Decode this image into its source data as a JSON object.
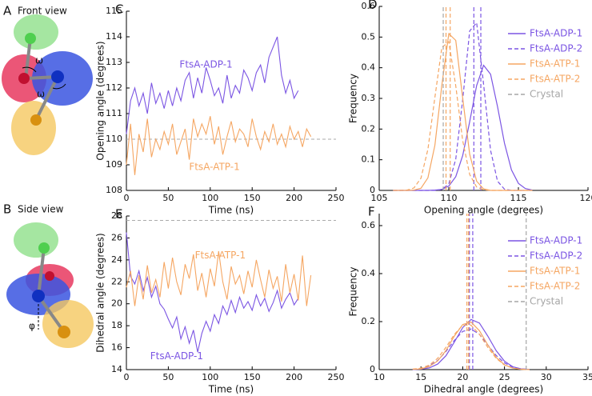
{
  "panels": {
    "A": {
      "letter": "A",
      "title": "Front view",
      "angle_labels": [
        "ω",
        "ω"
      ]
    },
    "B": {
      "letter": "B",
      "title": "Side view",
      "angle_label": "φ"
    }
  },
  "chart_data": [
    {
      "type": "line",
      "panel": "C",
      "xlabel": "Time (ns)",
      "ylabel": "Opening angle (degrees)",
      "xlim": [
        0,
        250
      ],
      "xticks": [
        0,
        50,
        100,
        150,
        200,
        250
      ],
      "ylim": [
        108,
        115
      ],
      "yticks": [
        108,
        109,
        110,
        111,
        112,
        113,
        114,
        115
      ],
      "reference_line": 110,
      "x": [
        0,
        5,
        10,
        15,
        20,
        25,
        30,
        35,
        40,
        45,
        50,
        55,
        60,
        65,
        70,
        75,
        80,
        85,
        90,
        95,
        100,
        105,
        110,
        115,
        120,
        125,
        130,
        135,
        140,
        145,
        150,
        155,
        160,
        165,
        170,
        175,
        180,
        185,
        190,
        195,
        200,
        205,
        210,
        215,
        220
      ],
      "series": [
        {
          "name": "FtsA-ADP-1",
          "color": "#7b55e3",
          "values": [
            110.2,
            111.5,
            112.0,
            111.3,
            111.8,
            111.0,
            112.2,
            111.4,
            111.8,
            111.2,
            111.9,
            111.3,
            112.0,
            111.5,
            112.3,
            112.6,
            111.6,
            112.4,
            111.8,
            112.8,
            112.3,
            111.7,
            112.0,
            111.4,
            112.5,
            111.6,
            112.1,
            111.8,
            112.7,
            112.4,
            111.9,
            112.6,
            112.9,
            112.2,
            113.2,
            113.6,
            114.0,
            112.5,
            111.8,
            112.3,
            111.6,
            111.9,
            null,
            null,
            null
          ]
        },
        {
          "name": "FtsA-ATP-1",
          "color": "#f5a662",
          "values": [
            109.0,
            110.6,
            108.6,
            110.2,
            109.5,
            110.8,
            109.3,
            110.0,
            109.6,
            110.3,
            109.8,
            110.6,
            109.4,
            109.9,
            110.4,
            109.2,
            110.8,
            110.1,
            110.6,
            110.2,
            110.9,
            109.8,
            110.5,
            109.4,
            110.1,
            110.7,
            109.9,
            110.4,
            110.2,
            109.7,
            110.8,
            110.1,
            109.6,
            110.3,
            109.9,
            110.6,
            109.8,
            110.2,
            109.7,
            110.5,
            110.0,
            110.3,
            109.7,
            110.4,
            110.1
          ]
        }
      ]
    },
    {
      "type": "distribution",
      "panel": "D",
      "xlabel": "Opening angle (degrees)",
      "ylabel": "Frequency",
      "xlim": [
        105,
        120
      ],
      "xticks": [
        105,
        110,
        115,
        120
      ],
      "ylim": [
        0,
        0.6
      ],
      "yticks": [
        0,
        0.1,
        0.2,
        0.3,
        0.4,
        0.5,
        0.6
      ],
      "x": [
        106,
        106.5,
        107,
        107.5,
        108,
        108.5,
        109,
        109.5,
        110,
        110.5,
        111,
        111.5,
        112,
        112.5,
        113,
        113.5,
        114,
        114.5,
        115,
        115.5,
        116
      ],
      "series": [
        {
          "name": "FtsA-ADP-1",
          "color": "#7b55e3",
          "dash": false,
          "mean": 112.3,
          "values": [
            0,
            0,
            0,
            0,
            0,
            0,
            0.001,
            0.003,
            0.014,
            0.045,
            0.114,
            0.224,
            0.342,
            0.408,
            0.379,
            0.273,
            0.154,
            0.067,
            0.023,
            0.006,
            0.001
          ]
        },
        {
          "name": "FtsA-ADP-2",
          "color": "#7b55e3",
          "dash": true,
          "mean": 111.8,
          "values": [
            0,
            0,
            0,
            0,
            0,
            0,
            0,
            0.003,
            0.021,
            0.102,
            0.297,
            0.52,
            0.547,
            0.346,
            0.131,
            0.03,
            0.004,
            0,
            0,
            0,
            0
          ]
        },
        {
          "name": "FtsA-ATP-1",
          "color": "#f5a662",
          "dash": false,
          "mean": 110.1,
          "values": [
            0,
            0,
            0,
            0.001,
            0.007,
            0.041,
            0.147,
            0.343,
            0.511,
            0.489,
            0.3,
            0.118,
            0.03,
            0.005,
            0,
            0,
            0,
            0,
            0,
            0,
            0
          ]
        },
        {
          "name": "FtsA-ATP-2",
          "color": "#f5a662",
          "dash": true,
          "mean": 109.8,
          "values": [
            0,
            0,
            0.001,
            0.008,
            0.04,
            0.134,
            0.303,
            0.466,
            0.485,
            0.341,
            0.162,
            0.052,
            0.011,
            0.002,
            0,
            0,
            0,
            0,
            0,
            0,
            0
          ]
        },
        {
          "name": "Crystal",
          "color": "#a6a6a6",
          "dash": true,
          "mean": 109.6
        }
      ]
    },
    {
      "type": "line",
      "panel": "E",
      "xlabel": "Time (ns)",
      "ylabel": "Dihedral angle (degrees)",
      "xlim": [
        0,
        250
      ],
      "xticks": [
        0,
        50,
        100,
        150,
        200,
        250
      ],
      "ylim": [
        14,
        28
      ],
      "yticks": [
        14,
        16,
        18,
        20,
        22,
        24,
        26,
        28
      ],
      "reference_line": 27.6,
      "x": [
        0,
        5,
        10,
        15,
        20,
        25,
        30,
        35,
        40,
        45,
        50,
        55,
        60,
        65,
        70,
        75,
        80,
        85,
        90,
        95,
        100,
        105,
        110,
        115,
        120,
        125,
        130,
        135,
        140,
        145,
        150,
        155,
        160,
        165,
        170,
        175,
        180,
        185,
        190,
        195,
        200,
        205,
        210,
        215,
        220
      ],
      "series": [
        {
          "name": "FtsA-ADP-1",
          "color": "#7b55e3",
          "values": [
            26.5,
            22.5,
            21.8,
            23.0,
            21.2,
            22.4,
            20.6,
            21.6,
            20.0,
            19.5,
            18.6,
            17.8,
            18.8,
            16.8,
            17.9,
            16.4,
            17.6,
            15.6,
            17.3,
            18.4,
            17.5,
            19.0,
            18.2,
            19.8,
            19.0,
            20.3,
            19.2,
            20.6,
            19.6,
            20.2,
            19.4,
            20.8,
            19.8,
            20.5,
            19.3,
            20.1,
            21.2,
            19.6,
            20.4,
            21.0,
            19.9,
            20.5,
            null,
            null,
            null
          ]
        },
        {
          "name": "FtsA-ATP-1",
          "color": "#f5a662",
          "values": [
            21.5,
            23.0,
            19.8,
            22.6,
            20.4,
            23.5,
            21.0,
            22.2,
            20.6,
            23.8,
            21.4,
            24.2,
            22.0,
            20.8,
            23.6,
            22.3,
            24.5,
            21.2,
            22.8,
            20.6,
            23.2,
            21.6,
            24.8,
            22.0,
            20.4,
            23.4,
            21.8,
            22.6,
            20.9,
            23.0,
            21.5,
            24.0,
            22.2,
            20.6,
            23.1,
            21.4,
            22.5,
            20.2,
            23.6,
            21.0,
            22.7,
            20.3,
            24.4,
            19.8,
            22.6
          ]
        }
      ]
    },
    {
      "type": "distribution",
      "panel": "F",
      "xlabel": "Dihedral angle (degrees)",
      "ylabel": "Frequency",
      "xlim": [
        10,
        35
      ],
      "xticks": [
        10,
        15,
        20,
        25,
        30,
        35
      ],
      "ylim": [
        0,
        0.65
      ],
      "yticks": [
        0,
        0.2,
        0.4,
        0.6
      ],
      "x": [
        14,
        15,
        16,
        17,
        18,
        19,
        20,
        21,
        22,
        23,
        24,
        25,
        26,
        27,
        28
      ],
      "series": [
        {
          "name": "FtsA-ADP-1",
          "color": "#7b55e3",
          "dash": false,
          "mean": 21.2,
          "values": [
            0,
            0.002,
            0.007,
            0.023,
            0.058,
            0.115,
            0.175,
            0.209,
            0.194,
            0.14,
            0.079,
            0.035,
            0.012,
            0.003,
            0.001
          ]
        },
        {
          "name": "FtsA-ADP-2",
          "color": "#7b55e3",
          "dash": true,
          "mean": 20.8,
          "values": [
            0.001,
            0.005,
            0.016,
            0.038,
            0.076,
            0.122,
            0.159,
            0.169,
            0.147,
            0.103,
            0.059,
            0.028,
            0.01,
            0.003,
            0.001
          ]
        },
        {
          "name": "FtsA-ATP-1",
          "color": "#f5a662",
          "dash": false,
          "mean": 20.7,
          "values": [
            0.001,
            0.003,
            0.013,
            0.036,
            0.08,
            0.14,
            0.188,
            0.198,
            0.162,
            0.103,
            0.051,
            0.02,
            0.006,
            0.001,
            0
          ]
        },
        {
          "name": "FtsA-ATP-2",
          "color": "#f5a662",
          "dash": true,
          "mean": 20.5,
          "values": [
            0.002,
            0.006,
            0.019,
            0.047,
            0.093,
            0.147,
            0.185,
            0.185,
            0.147,
            0.093,
            0.047,
            0.019,
            0.006,
            0.002,
            0
          ]
        },
        {
          "name": "Crystal",
          "color": "#a6a6a6",
          "dash": true,
          "mean": 27.6
        }
      ]
    }
  ]
}
